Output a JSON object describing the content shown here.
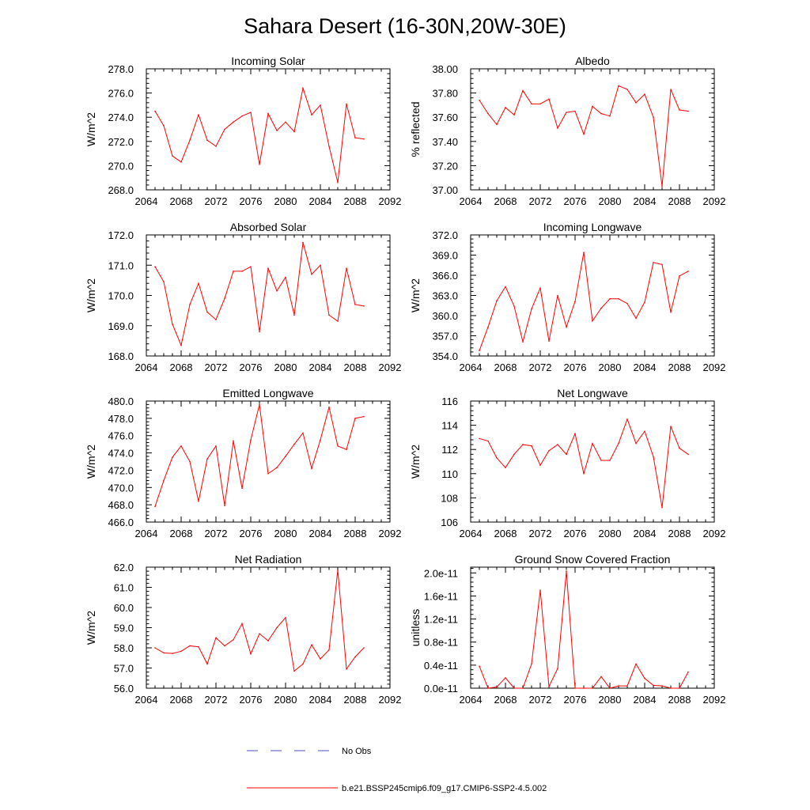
{
  "title": "Sahara Desert (16-30N,20W-30E)",
  "colors": {
    "series": "#ff0000",
    "obs": "#4d4dcc",
    "axis": "#000000"
  },
  "legend": [
    {
      "label": "No Obs",
      "style": "dashed",
      "color": "#4d4dcc"
    },
    {
      "label": "b.e21.BSSP245cmip6.f09_g17.CMIP6-SSP2-4.5.002",
      "style": "solid",
      "color": "#ff0000"
    }
  ],
  "chart_data": [
    {
      "type": "line",
      "title": "Incoming Solar",
      "ylabel": "W/m^2",
      "xlim": [
        2064,
        2092
      ],
      "ylim": [
        268,
        278
      ],
      "yticks": [
        268,
        270,
        272,
        274,
        276,
        278
      ],
      "ytick_labels": [
        "268.0",
        "270.0",
        "272.0",
        "274.0",
        "276.0",
        "278.0"
      ],
      "xticks": [
        2064,
        2068,
        2072,
        2076,
        2080,
        2084,
        2088,
        2092
      ],
      "xtick_labels": [
        "2064",
        "2068",
        "2072",
        "2076",
        "2080",
        "2084",
        "2088",
        "2092"
      ],
      "x": [
        2065,
        2066,
        2067,
        2068,
        2069,
        2070,
        2071,
        2072,
        2073,
        2074,
        2075,
        2076,
        2077,
        2078,
        2079,
        2080,
        2081,
        2082,
        2083,
        2084,
        2085,
        2086,
        2087,
        2088,
        2089
      ],
      "values": [
        274.5,
        273.3,
        270.8,
        270.3,
        272.1,
        274.2,
        272.1,
        271.6,
        273.0,
        273.6,
        274.1,
        274.4,
        270.1,
        274.3,
        272.9,
        273.6,
        272.8,
        276.4,
        274.2,
        275.0,
        271.6,
        268.6,
        275.1,
        272.3,
        272.2
      ]
    },
    {
      "type": "line",
      "title": "Albedo",
      "ylabel": "% reflected",
      "xlim": [
        2064,
        2092
      ],
      "ylim": [
        37.0,
        38.0
      ],
      "yticks": [
        37.0,
        37.2,
        37.4,
        37.6,
        37.8,
        38.0
      ],
      "ytick_labels": [
        "37.00",
        "37.20",
        "37.40",
        "37.60",
        "37.80",
        "38.00"
      ],
      "xticks": [
        2064,
        2068,
        2072,
        2076,
        2080,
        2084,
        2088,
        2092
      ],
      "xtick_labels": [
        "2064",
        "2068",
        "2072",
        "2076",
        "2080",
        "2084",
        "2088",
        "2092"
      ],
      "x": [
        2065,
        2066,
        2067,
        2068,
        2069,
        2070,
        2071,
        2072,
        2073,
        2074,
        2075,
        2076,
        2077,
        2078,
        2079,
        2080,
        2081,
        2082,
        2083,
        2084,
        2085,
        2086,
        2087,
        2088,
        2089
      ],
      "values": [
        37.74,
        37.63,
        37.54,
        37.68,
        37.62,
        37.82,
        37.71,
        37.71,
        37.75,
        37.51,
        37.64,
        37.65,
        37.46,
        37.69,
        37.63,
        37.61,
        37.86,
        37.83,
        37.72,
        37.79,
        37.6,
        37.03,
        37.83,
        37.66,
        37.65
      ]
    },
    {
      "type": "line",
      "title": "Absorbed Solar",
      "ylabel": "W/m^2",
      "xlim": [
        2064,
        2092
      ],
      "ylim": [
        168,
        172
      ],
      "yticks": [
        168,
        169,
        170,
        171,
        172
      ],
      "ytick_labels": [
        "168.0",
        "169.0",
        "170.0",
        "171.0",
        "172.0"
      ],
      "xticks": [
        2064,
        2068,
        2072,
        2076,
        2080,
        2084,
        2088,
        2092
      ],
      "xtick_labels": [
        "2064",
        "2068",
        "2072",
        "2076",
        "2080",
        "2084",
        "2088",
        "2092"
      ],
      "x": [
        2065,
        2066,
        2067,
        2068,
        2069,
        2070,
        2071,
        2072,
        2073,
        2074,
        2075,
        2076,
        2077,
        2078,
        2079,
        2080,
        2081,
        2082,
        2083,
        2084,
        2085,
        2086,
        2087,
        2088,
        2089
      ],
      "values": [
        170.95,
        170.45,
        169.05,
        168.35,
        169.7,
        170.4,
        169.45,
        169.2,
        169.9,
        170.8,
        170.8,
        170.95,
        168.8,
        170.9,
        170.15,
        170.6,
        169.35,
        171.75,
        170.7,
        171.0,
        169.35,
        169.15,
        170.9,
        169.7,
        169.65
      ]
    },
    {
      "type": "line",
      "title": "Incoming Longwave",
      "ylabel": "W/m^2",
      "xlim": [
        2064,
        2092
      ],
      "ylim": [
        354,
        372
      ],
      "yticks": [
        354,
        357,
        360,
        363,
        366,
        369,
        372
      ],
      "ytick_labels": [
        "354.0",
        "357.0",
        "360.0",
        "363.0",
        "366.0",
        "369.0",
        "372.0"
      ],
      "xticks": [
        2064,
        2068,
        2072,
        2076,
        2080,
        2084,
        2088,
        2092
      ],
      "xtick_labels": [
        "2064",
        "2068",
        "2072",
        "2076",
        "2080",
        "2084",
        "2088",
        "2092"
      ],
      "x": [
        2065,
        2066,
        2067,
        2068,
        2069,
        2070,
        2071,
        2072,
        2073,
        2074,
        2075,
        2076,
        2077,
        2078,
        2079,
        2080,
        2081,
        2082,
        2083,
        2084,
        2085,
        2086,
        2087,
        2088,
        2089
      ],
      "values": [
        354.8,
        358.3,
        362.2,
        364.3,
        361.4,
        356.1,
        361.0,
        364.1,
        356.2,
        363.0,
        358.3,
        362.1,
        369.4,
        359.2,
        361.1,
        362.5,
        362.5,
        361.8,
        359.6,
        362.0,
        367.9,
        367.6,
        360.5,
        365.9,
        366.6
      ]
    },
    {
      "type": "line",
      "title": "Emitted Longwave",
      "ylabel": "W/m^2",
      "xlim": [
        2064,
        2092
      ],
      "ylim": [
        466,
        480
      ],
      "yticks": [
        466,
        468,
        470,
        472,
        474,
        476,
        478,
        480
      ],
      "ytick_labels": [
        "466.0",
        "468.0",
        "470.0",
        "472.0",
        "474.0",
        "476.0",
        "478.0",
        "480.0"
      ],
      "xticks": [
        2064,
        2068,
        2072,
        2076,
        2080,
        2084,
        2088,
        2092
      ],
      "xtick_labels": [
        "2064",
        "2068",
        "2072",
        "2076",
        "2080",
        "2084",
        "2088",
        "2092"
      ],
      "x": [
        2065,
        2066,
        2067,
        2068,
        2069,
        2070,
        2071,
        2072,
        2073,
        2074,
        2075,
        2076,
        2077,
        2078,
        2079,
        2080,
        2081,
        2082,
        2083,
        2084,
        2085,
        2086,
        2087,
        2088,
        2089
      ],
      "values": [
        467.8,
        470.8,
        473.5,
        474.8,
        473.0,
        468.4,
        473.3,
        474.8,
        467.9,
        475.4,
        469.9,
        475.5,
        479.6,
        471.6,
        472.3,
        473.6,
        475.0,
        476.3,
        472.2,
        475.5,
        479.3,
        474.8,
        474.4,
        478.0,
        478.2
      ]
    },
    {
      "type": "line",
      "title": "Net Longwave",
      "ylabel": "W/m^2",
      "xlim": [
        2064,
        2092
      ],
      "ylim": [
        106,
        116
      ],
      "yticks": [
        106,
        108,
        110,
        112,
        114,
        116
      ],
      "ytick_labels": [
        "106",
        "108",
        "110",
        "112",
        "114",
        "116"
      ],
      "xticks": [
        2064,
        2068,
        2072,
        2076,
        2080,
        2084,
        2088,
        2092
      ],
      "xtick_labels": [
        "2064",
        "2068",
        "2072",
        "2076",
        "2080",
        "2084",
        "2088",
        "2092"
      ],
      "x": [
        2065,
        2066,
        2067,
        2068,
        2069,
        2070,
        2071,
        2072,
        2073,
        2074,
        2075,
        2076,
        2077,
        2078,
        2079,
        2080,
        2081,
        2082,
        2083,
        2084,
        2085,
        2086,
        2087,
        2088,
        2089
      ],
      "values": [
        112.9,
        112.7,
        111.3,
        110.5,
        111.6,
        112.4,
        112.3,
        110.7,
        111.9,
        112.4,
        111.6,
        113.3,
        110.0,
        112.5,
        111.1,
        111.1,
        112.5,
        114.5,
        112.5,
        113.5,
        111.4,
        107.2,
        113.9,
        112.1,
        111.6
      ]
    },
    {
      "type": "line",
      "title": "Net Radiation",
      "ylabel": "W/m^2",
      "xlim": [
        2064,
        2092
      ],
      "ylim": [
        56,
        62
      ],
      "yticks": [
        56,
        57,
        58,
        59,
        60,
        61,
        62
      ],
      "ytick_labels": [
        "56.0",
        "57.0",
        "58.0",
        "59.0",
        "60.0",
        "61.0",
        "62.0"
      ],
      "xticks": [
        2064,
        2068,
        2072,
        2076,
        2080,
        2084,
        2088,
        2092
      ],
      "xtick_labels": [
        "2064",
        "2068",
        "2072",
        "2076",
        "2080",
        "2084",
        "2088",
        "2092"
      ],
      "x": [
        2065,
        2066,
        2067,
        2068,
        2069,
        2070,
        2071,
        2072,
        2073,
        2074,
        2075,
        2076,
        2077,
        2078,
        2079,
        2080,
        2081,
        2082,
        2083,
        2084,
        2085,
        2086,
        2087,
        2088,
        2089
      ],
      "values": [
        58.0,
        57.75,
        57.72,
        57.83,
        58.1,
        58.05,
        57.2,
        58.5,
        58.1,
        58.4,
        59.2,
        57.7,
        58.7,
        58.35,
        59.0,
        59.5,
        56.85,
        57.2,
        58.15,
        57.45,
        57.9,
        61.85,
        56.95,
        57.55,
        58.0
      ]
    },
    {
      "type": "line",
      "title": "Ground Snow Covered Fraction",
      "ylabel": "unitless",
      "xlim": [
        2064,
        2092
      ],
      "ylim": [
        0,
        2.1e-11
      ],
      "yticks": [
        0,
        4e-12,
        8e-12,
        1.2e-11,
        1.6e-11,
        2e-11
      ],
      "ytick_labels": [
        "0.0e-11",
        "0.4e-11",
        "0.8e-11",
        "1.2e-11",
        "1.6e-11",
        "2.0e-11"
      ],
      "xticks": [
        2064,
        2068,
        2072,
        2076,
        2080,
        2084,
        2088,
        2092
      ],
      "xtick_labels": [
        "2064",
        "2068",
        "2072",
        "2076",
        "2080",
        "2084",
        "2088",
        "2092"
      ],
      "x": [
        2065,
        2066,
        2067,
        2068,
        2069,
        2070,
        2071,
        2072,
        2073,
        2074,
        2075,
        2076,
        2077,
        2078,
        2079,
        2080,
        2081,
        2082,
        2083,
        2084,
        2085,
        2086,
        2087,
        2088,
        2089
      ],
      "values": [
        3.8e-12,
        0,
        2e-13,
        1.8e-12,
        0,
        0,
        4.2e-12,
        1.7e-11,
        3e-13,
        3.4e-12,
        2.03e-11,
        0,
        0,
        0,
        2e-12,
        0,
        4e-13,
        4e-13,
        4.2e-12,
        1.7e-12,
        5e-13,
        4e-13,
        0,
        0,
        2.8e-12
      ]
    }
  ]
}
